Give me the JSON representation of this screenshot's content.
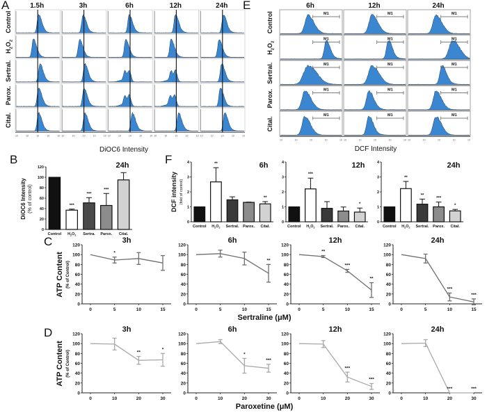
{
  "figure": {
    "panel_labels": {
      "A": "A",
      "B": "B",
      "C": "C",
      "D": "D",
      "E": "E",
      "F": "F"
    }
  },
  "chart_data": [
    {
      "id": "A",
      "type": "histogram-grid",
      "title": "",
      "xlabel": "DiOC6 Intensity",
      "x_scale": "log",
      "columns": [
        "1.5h",
        "3h",
        "6h",
        "12h",
        "24h"
      ],
      "rows": [
        "Control",
        "H2O2",
        "Sertral.",
        "Parox.",
        "Cital."
      ],
      "reference_line": true,
      "peak_position_relative": [
        [
          0.52,
          0.48,
          0.48,
          0.48,
          0.52
        ],
        [
          0.4,
          0.4,
          0.4,
          0.38,
          0.42
        ],
        [
          0.55,
          0.52,
          0.45,
          0.45,
          0.48
        ],
        [
          0.52,
          0.5,
          0.45,
          0.43,
          0.45
        ],
        [
          0.52,
          0.52,
          0.55,
          0.55,
          0.55
        ]
      ],
      "bimodal": [
        [
          false,
          false,
          false,
          false,
          false
        ],
        [
          false,
          false,
          false,
          false,
          false
        ],
        [
          false,
          false,
          true,
          true,
          false
        ],
        [
          false,
          false,
          true,
          true,
          false
        ],
        [
          false,
          false,
          false,
          false,
          false
        ]
      ]
    },
    {
      "id": "E",
      "type": "histogram-grid",
      "xlabel": "DCF Intensity",
      "x_scale": "log",
      "columns": [
        "6h",
        "12h",
        "24h"
      ],
      "rows": [
        "Control",
        "H2O2",
        "Sertral.",
        "Parox.",
        "Cital."
      ],
      "gate_label": "M1",
      "peak_position_relative": [
        [
          0.45,
          0.45,
          0.45
        ],
        [
          0.75,
          0.72,
          0.72
        ],
        [
          0.45,
          0.45,
          0.55
        ],
        [
          0.4,
          0.4,
          0.45
        ],
        [
          0.4,
          0.4,
          0.45
        ]
      ],
      "peak_width": [
        [
          0.12,
          0.12,
          0.12
        ],
        [
          0.08,
          0.08,
          0.14
        ],
        [
          0.18,
          0.14,
          0.09
        ],
        [
          0.12,
          0.1,
          0.11
        ],
        [
          0.11,
          0.09,
          0.11
        ]
      ]
    },
    {
      "id": "B",
      "type": "bar",
      "title": "24h",
      "ylabel": "DiOC6 Intensity",
      "ylabel2": "(% of control)",
      "categories": [
        "Control",
        "H2O2",
        "Sertra.",
        "Parox.",
        "Cital."
      ],
      "values": [
        100,
        37,
        51,
        46,
        95
      ],
      "errors": [
        0,
        2,
        10,
        23,
        14
      ],
      "significance": [
        "",
        "***",
        "***",
        "***",
        ""
      ],
      "ylim": [
        0,
        120
      ],
      "yticks": [
        0,
        20,
        40,
        60,
        80,
        100,
        120
      ],
      "bar_colors": [
        "#111111",
        "#ffffff",
        "#4a4a4a",
        "#8c8c8c",
        "#d2d2d2"
      ]
    },
    {
      "id": "F",
      "type": "bar",
      "ylabel": "DCF intensity",
      "ylabel2": "(fold of control)",
      "ylim": [
        0,
        4
      ],
      "yticks": [
        0,
        1,
        2,
        3,
        4
      ],
      "categories": [
        "Control",
        "H2O2",
        "Sertral.",
        "Parox.",
        "Cital."
      ],
      "bar_colors": [
        "#111111",
        "#ffffff",
        "#3a3a3a",
        "#8c8c8c",
        "#d2d2d2"
      ],
      "panels": [
        {
          "title": "6h",
          "values": [
            1.0,
            2.67,
            1.47,
            1.3,
            1.2
          ],
          "errors": [
            0,
            0.95,
            0.2,
            0.02,
            0.15
          ],
          "significance": [
            "",
            "**",
            "",
            "",
            "**"
          ]
        },
        {
          "title": "12h",
          "values": [
            1.0,
            2.2,
            0.9,
            0.72,
            0.65
          ],
          "errors": [
            0,
            0.72,
            0.45,
            0.27,
            0.27
          ],
          "significance": [
            "",
            "***",
            "",
            "",
            "*"
          ]
        },
        {
          "title": "24h",
          "values": [
            1.0,
            2.22,
            1.18,
            1.0,
            0.73
          ],
          "errors": [
            0,
            0.48,
            0.34,
            0.32,
            0.1
          ],
          "significance": [
            "",
            "**",
            "**",
            "***",
            "*"
          ]
        }
      ]
    },
    {
      "id": "C",
      "type": "line",
      "ylabel": "ATP Content",
      "ylabel2": "(% of Control)",
      "xlabel": "Sertraline (μM)",
      "x": [
        0,
        5,
        10,
        15
      ],
      "ylim": [
        0,
        120
      ],
      "yticks": [
        0,
        20,
        40,
        60,
        80,
        100,
        120
      ],
      "line_color": "#6e6e6e",
      "panels": [
        {
          "title": "3h",
          "values": [
            100,
            89,
            92,
            83
          ],
          "errors": [
            0,
            6,
            12,
            15
          ],
          "significance": [
            "",
            "*",
            "",
            ""
          ]
        },
        {
          "title": "6h",
          "values": [
            100,
            102,
            92,
            62
          ],
          "errors": [
            0,
            7,
            13,
            18
          ],
          "significance": [
            "",
            "",
            "",
            "**"
          ]
        },
        {
          "title": "12h",
          "values": [
            100,
            96,
            67,
            28
          ],
          "errors": [
            0,
            2,
            3,
            15
          ],
          "significance": [
            "",
            "**",
            "***",
            "**"
          ]
        },
        {
          "title": "24h",
          "values": [
            100,
            92,
            14,
            4
          ],
          "errors": [
            0,
            9,
            8,
            6
          ],
          "significance": [
            "",
            "",
            "***",
            "***"
          ]
        }
      ]
    },
    {
      "id": "D",
      "type": "line",
      "ylabel": "ATP Content",
      "ylabel2": "(% of Control)",
      "xlabel": "Paroxetine (μM)",
      "x": [
        0,
        10,
        20,
        30
      ],
      "ylim": [
        0,
        120
      ],
      "yticks": [
        0,
        20,
        40,
        60,
        80,
        100,
        120
      ],
      "line_color": "#a9a9a9",
      "panels": [
        {
          "title": "3h",
          "values": [
            100,
            99,
            66,
            67
          ],
          "errors": [
            0,
            12,
            8,
            13
          ],
          "significance": [
            "",
            "",
            "**",
            "*"
          ]
        },
        {
          "title": "6h",
          "values": [
            100,
            104,
            55,
            50
          ],
          "errors": [
            0,
            4,
            15,
            8
          ],
          "significance": [
            "",
            "",
            "*",
            "***"
          ]
        },
        {
          "title": "12h",
          "values": [
            100,
            99,
            32,
            13
          ],
          "errors": [
            0,
            7,
            10,
            6
          ],
          "significance": [
            "",
            "",
            "***",
            "***"
          ]
        },
        {
          "title": "24h",
          "values": [
            100,
            101,
            0,
            0
          ],
          "errors": [
            0,
            7,
            0,
            0
          ],
          "significance": [
            "",
            "",
            "***",
            "***"
          ]
        }
      ]
    }
  ],
  "colors": {
    "histogram_fill": "#3a86d0",
    "histogram_edge": "#1f3b5a",
    "axis": "#222222",
    "frame": "#9a9a9a"
  }
}
